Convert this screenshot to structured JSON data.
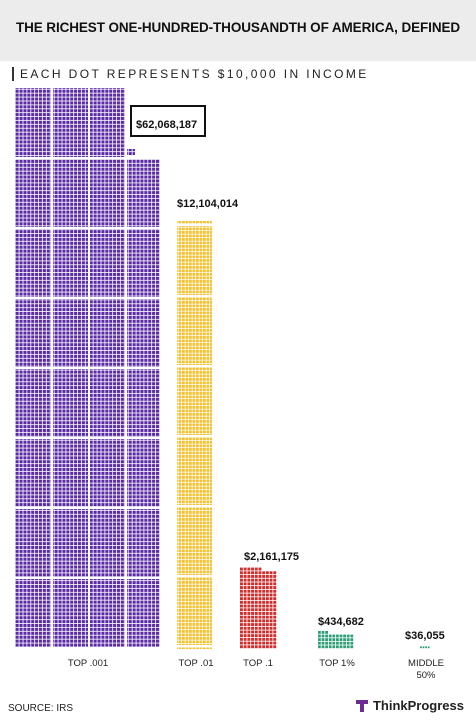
{
  "title": "THE RICHEST ONE-HUNDRED-THOUSANDTH OF AMERICA, DEFINED",
  "legend": "EACH DOT REPRESENTS $10,000 IN INCOME",
  "source": "SOURCE: IRS",
  "brand": "ThinkProgress",
  "colors": {
    "top001": "#5b2aa5",
    "top01": "#f2c230",
    "top1": "#d22b2b",
    "top1pct": "#2e9e76",
    "middle": "#2e9e76"
  },
  "chart_data": {
    "type": "bar",
    "unit_per_dot": 10000,
    "categories": [
      "TOP .001",
      "TOP .01",
      "TOP .1",
      "TOP 1%",
      "MIDDLE 50%"
    ],
    "values": [
      62068187,
      12104014,
      2161175,
      434682,
      36055
    ],
    "value_labels": [
      "$62,068,187",
      "$12,104,014",
      "$2,161,175",
      "$434,682",
      "$36,055"
    ]
  }
}
